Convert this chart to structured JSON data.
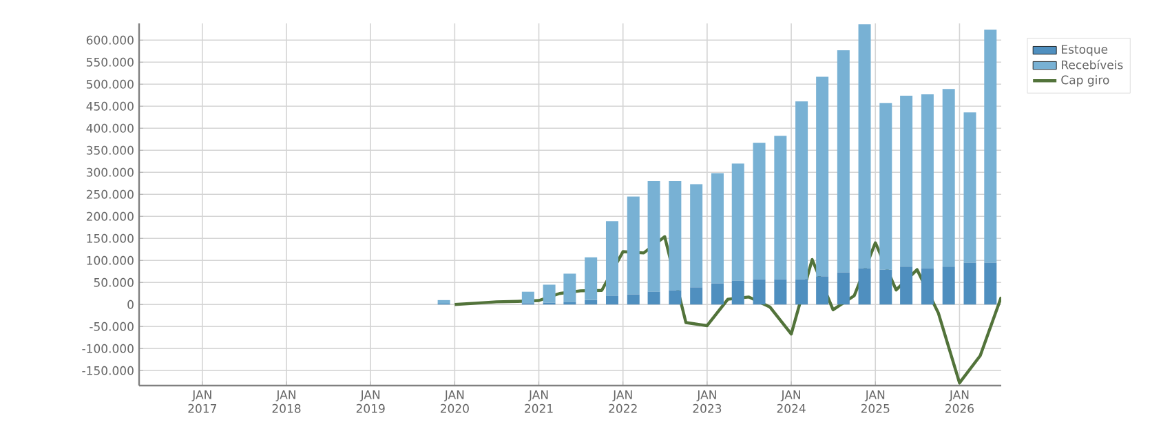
{
  "chart_data": {
    "type": "bar",
    "stacked": true,
    "x": [
      "2019-11-15",
      "2020-11-15",
      "2021-02-15",
      "2021-05-15",
      "2021-08-15",
      "2021-11-15",
      "2022-02-15",
      "2022-05-15",
      "2022-08-15",
      "2022-11-15",
      "2023-02-15",
      "2023-05-15",
      "2023-08-15",
      "2023-11-15",
      "2024-02-15",
      "2024-05-15",
      "2024-08-15",
      "2024-11-15",
      "2025-02-15",
      "2025-05-15",
      "2025-08-15",
      "2025-11-15",
      "2026-02-15",
      "2026-05-15"
    ],
    "series": [
      {
        "name": "Estoque",
        "color": "#4f8fbf",
        "values": [
          2000,
          3000,
          4000,
          6000,
          10000,
          20000,
          23000,
          29000,
          32000,
          39000,
          48000,
          54000,
          57000,
          57000,
          57000,
          64000,
          73000,
          82000,
          79000,
          86000,
          82000,
          86000,
          95000,
          95000
        ]
      },
      {
        "name": "Recebíveis",
        "color": "#78b1d4",
        "values": [
          8000,
          26000,
          41000,
          64000,
          97000,
          169000,
          222000,
          251000,
          248000,
          234000,
          250000,
          266000,
          310000,
          326000,
          404000,
          453000,
          504000,
          554000,
          378000,
          388000,
          395000,
          403000,
          341000,
          529000
        ]
      },
      {
        "name": "Cap giro",
        "type": "line",
        "color": "#52733a",
        "marker": "none",
        "line_style": "solid",
        "x": [
          "2020-01-01",
          "2020-04-01",
          "2020-07-01",
          "2020-10-01",
          "2021-01-01",
          "2021-04-01",
          "2021-07-01",
          "2021-10-01",
          "2022-01-01",
          "2022-04-01",
          "2022-07-01",
          "2022-10-01",
          "2023-01-01",
          "2023-04-01",
          "2023-07-01",
          "2023-10-01",
          "2024-01-01",
          "2024-04-01",
          "2024-07-01",
          "2024-10-01",
          "2025-01-01",
          "2025-04-01",
          "2025-07-01",
          "2025-10-01",
          "2026-01-01",
          "2026-04-01",
          "2026-07-01"
        ],
        "values": [
          0,
          3000,
          6000,
          7000,
          9000,
          25000,
          31000,
          32000,
          120000,
          117000,
          154000,
          -41000,
          -48000,
          12000,
          17000,
          -6000,
          -67000,
          102000,
          -12000,
          20000,
          140000,
          33000,
          79000,
          -19000,
          -178000,
          -116000,
          17000
        ]
      }
    ],
    "xlim": [
      "2016-04-01",
      "2026-07-01"
    ],
    "xticks": [
      {
        "value": "2017-01-01",
        "label": "JAN 2017"
      },
      {
        "value": "2018-01-01",
        "label": "JAN 2018"
      },
      {
        "value": "2019-01-01",
        "label": "JAN 2019"
      },
      {
        "value": "2020-01-01",
        "label": "JAN 2020"
      },
      {
        "value": "2021-01-01",
        "label": "JAN 2021"
      },
      {
        "value": "2022-01-01",
        "label": "JAN 2022"
      },
      {
        "value": "2023-01-01",
        "label": "JAN 2023"
      },
      {
        "value": "2024-01-01",
        "label": "JAN 2024"
      },
      {
        "value": "2025-01-01",
        "label": "JAN 2025"
      },
      {
        "value": "2026-01-01",
        "label": "JAN 2026"
      }
    ],
    "ylim": [
      -184000,
      638000
    ],
    "yticks": [
      {
        "value": -150000,
        "label": "-150.000"
      },
      {
        "value": -100000,
        "label": "-100.000"
      },
      {
        "value": -50000,
        "label": "-50.000"
      },
      0,
      {
        "value": 50000,
        "label": "50.000"
      },
      {
        "value": 100000,
        "label": "100.000"
      },
      {
        "value": 150000,
        "label": "150.000"
      },
      {
        "value": 200000,
        "label": "200.000"
      },
      {
        "value": 250000,
        "label": "250.000"
      },
      {
        "value": 300000,
        "label": "300.000"
      },
      {
        "value": 350000,
        "label": "350.000"
      },
      {
        "value": 400000,
        "label": "400.000"
      },
      {
        "value": 450000,
        "label": "450.000"
      },
      {
        "value": 500000,
        "label": "500.000"
      },
      {
        "value": 550000,
        "label": "550.000"
      },
      {
        "value": 600000,
        "label": "600.000"
      }
    ],
    "grid": true,
    "legend": "right"
  }
}
